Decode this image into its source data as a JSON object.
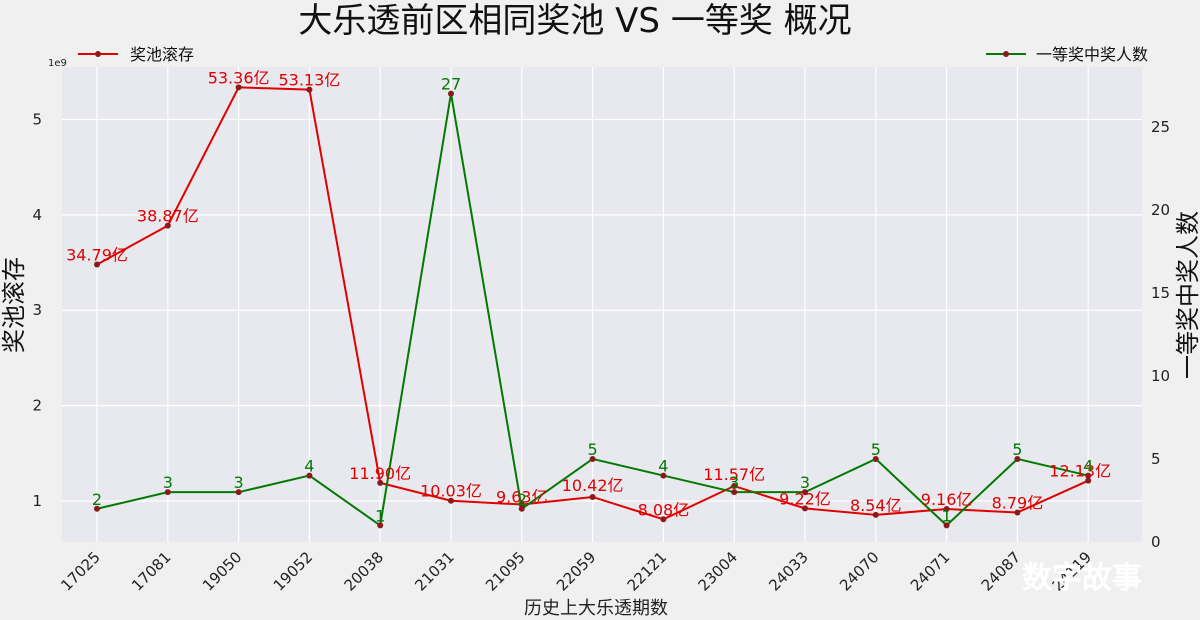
{
  "chart_data": {
    "type": "line",
    "title": "大乐透前区相同奖池 VS 一等奖 概况",
    "xlabel": "历史上大乐透期数",
    "ylabel_left": "奖池滚存",
    "ylabel_right": "一等奖中奖人数",
    "left_axis_exponent": "1e9",
    "categories": [
      "17025",
      "17081",
      "19050",
      "19052",
      "20038",
      "21031",
      "21095",
      "22059",
      "22121",
      "23004",
      "24033",
      "24070",
      "24071",
      "24087",
      "24119"
    ],
    "y_left_ticks": [
      1,
      2,
      3,
      4,
      5
    ],
    "y_right_ticks": [
      0,
      5,
      10,
      15,
      20,
      25
    ],
    "ylim_left": [
      0.57,
      5.55
    ],
    "ylim_right": [
      0,
      28.6
    ],
    "grid": true,
    "series": [
      {
        "name": "奖池滚存",
        "axis": "left",
        "color": "#e00000",
        "values": [
          3.479,
          3.887,
          5.336,
          5.313,
          1.19,
          1.003,
          0.963,
          1.042,
          0.808,
          1.157,
          0.922,
          0.854,
          0.916,
          0.879,
          1.213
        ],
        "labels": [
          "34.79亿",
          "38.87亿",
          "53.36亿",
          "53.13亿",
          "11.90亿",
          "10.03亿",
          "9.63亿",
          "10.42亿",
          "8.08亿",
          "11.57亿",
          "9.22亿",
          "8.54亿",
          "9.16亿",
          "8.79亿",
          "12.13亿"
        ]
      },
      {
        "name": "一等奖中奖人数",
        "axis": "right",
        "color": "#007a00",
        "values": [
          2,
          3,
          3,
          4,
          1,
          27,
          2,
          5,
          4,
          3,
          3,
          5,
          1,
          5,
          4
        ],
        "labels": [
          "2",
          "3",
          "3",
          "4",
          "1",
          "27",
          "2",
          "5",
          "4",
          "3",
          "3",
          "5",
          "1",
          "5",
          "4"
        ]
      }
    ],
    "legend": [
      "top-left",
      "top-right"
    ]
  },
  "watermark": "数字故事"
}
